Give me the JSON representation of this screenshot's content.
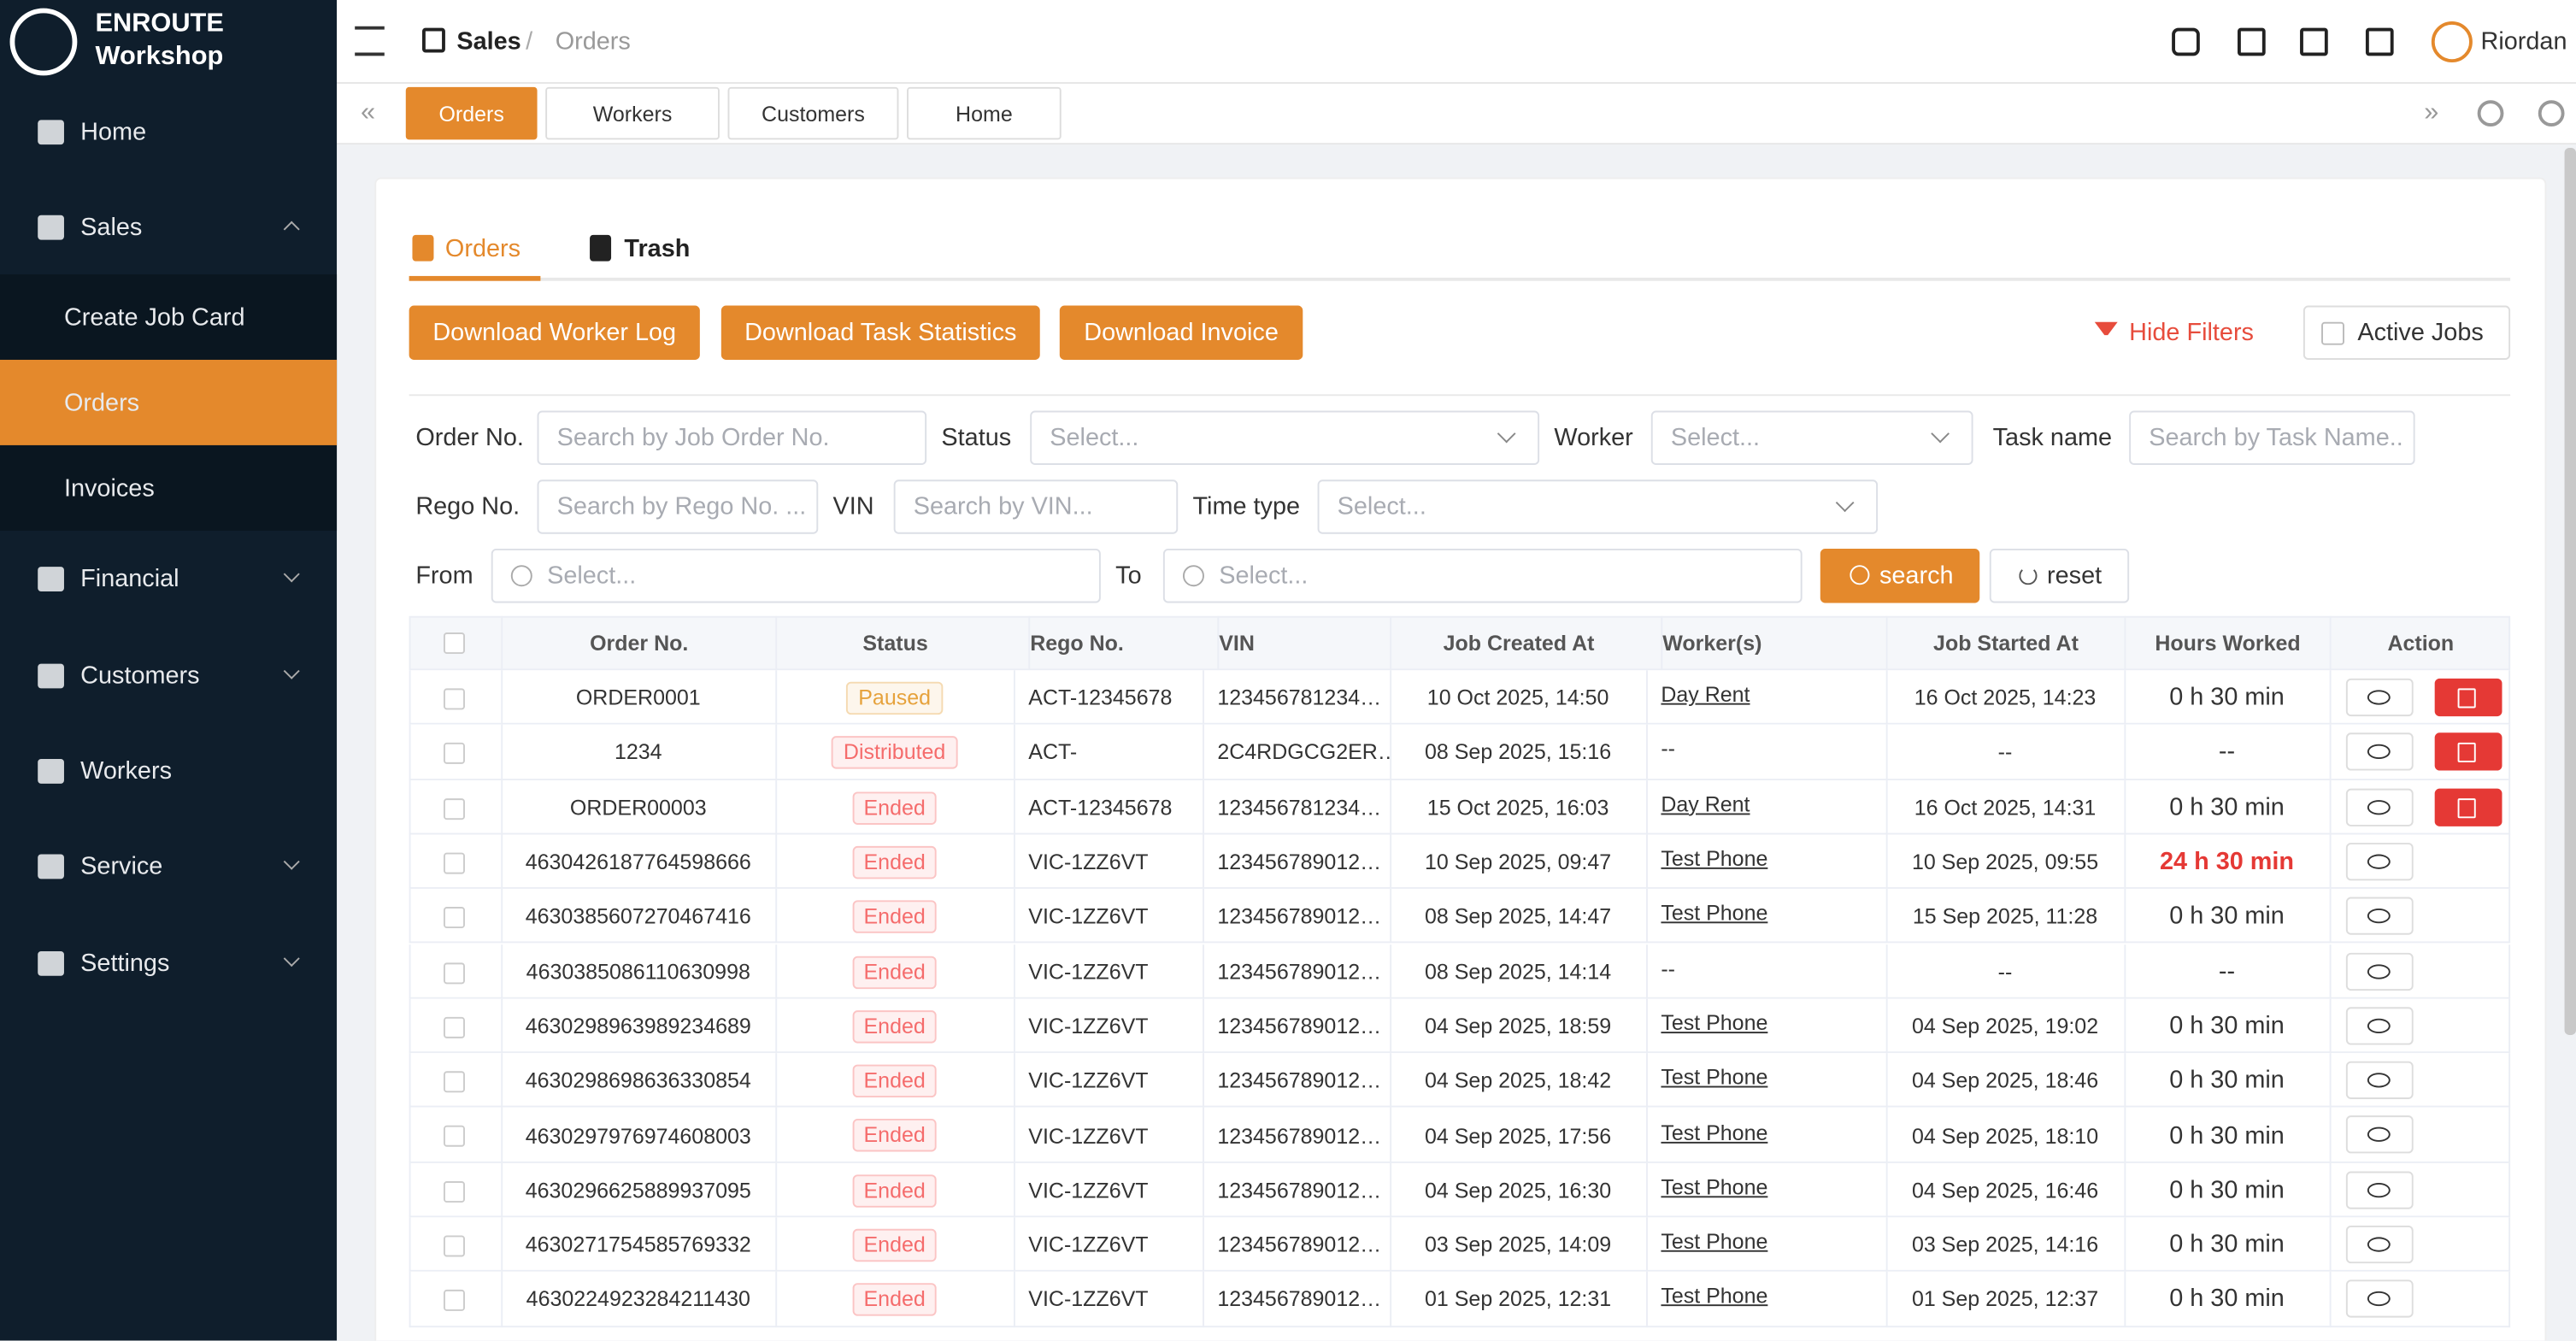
{
  "sidebar": {
    "brand": {
      "line1": "ENROUTE",
      "line2": "Workshop"
    },
    "menu": [
      {
        "label": "Home"
      },
      {
        "label": "Sales",
        "children": [
          "Create Job Card",
          "Orders",
          "Invoices"
        ]
      },
      {
        "label": "Financial"
      },
      {
        "label": "Customers"
      },
      {
        "label": "Workers"
      },
      {
        "label": "Service"
      },
      {
        "label": "Settings"
      }
    ]
  },
  "header": {
    "breadcrumb": [
      "Sales",
      "Orders"
    ],
    "user": "Riordan"
  },
  "tabs_bar": [
    "Orders",
    "Workers",
    "Customers",
    "Home"
  ],
  "page_tabs": [
    "Orders",
    "Trash"
  ],
  "toolbar": {
    "buttons": [
      "Download Worker Log",
      "Download Task Statistics",
      "Download Invoice"
    ],
    "hide_filters": "Hide Filters",
    "active_jobs": "Active Jobs"
  },
  "filters": [
    {
      "label": "Order No.",
      "placeholder": "Search by Job Order No."
    },
    {
      "label": "Status",
      "placeholder": "Select..."
    },
    {
      "label": "Worker",
      "placeholder": "Select..."
    },
    {
      "label": "Task name",
      "placeholder": "Search by Task Name.."
    },
    {
      "label": "Rego No.",
      "placeholder": "Search by Rego No. ..."
    },
    {
      "label": "VIN",
      "placeholder": "Search by VIN..."
    },
    {
      "label": "Time type",
      "placeholder": "Select..."
    },
    {
      "label": "From",
      "placeholder": "Select..."
    },
    {
      "label": "To",
      "placeholder": "Select..."
    }
  ],
  "filter_actions": [
    "search",
    "reset"
  ],
  "table": {
    "columns": [
      "Order No.",
      "Status",
      "Rego No.",
      "VIN",
      "Job Created At",
      "Worker(s)",
      "Job Started At",
      "Hours Worked",
      "Action"
    ],
    "rows": [
      [
        "ORDER0001",
        "Paused",
        "ACT-12345678",
        "123456781234…",
        "10 Oct 2025, 14:50",
        "Day Rent",
        "16 Oct 2025, 14:23",
        "0 h 30 min"
      ],
      [
        "1234",
        "Distributed",
        "ACT-",
        "2C4RDGCG2ER…",
        "08 Sep 2025, 15:16",
        "--",
        "--",
        "--"
      ],
      [
        "ORDER00003",
        "Ended",
        "ACT-12345678",
        "123456781234…",
        "15 Oct 2025, 16:03",
        "Day Rent",
        "16 Oct 2025, 14:31",
        "0 h 30 min"
      ],
      [
        "4630426187764598666",
        "Ended",
        "VIC-1ZZ6VT",
        "123456789012…",
        "10 Sep 2025, 09:47",
        "Test Phone",
        "10 Sep 2025, 09:55",
        "24 h 30 min"
      ],
      [
        "4630385607270467416",
        "Ended",
        "VIC-1ZZ6VT",
        "123456789012…",
        "08 Sep 2025, 14:47",
        "Test Phone",
        "15 Sep 2025, 11:28",
        "0 h 30 min"
      ],
      [
        "4630385086110630998",
        "Ended",
        "VIC-1ZZ6VT",
        "123456789012…",
        "08 Sep 2025, 14:14",
        "--",
        "--",
        "--"
      ],
      [
        "4630298963989234689",
        "Ended",
        "VIC-1ZZ6VT",
        "123456789012…",
        "04 Sep 2025, 18:59",
        "Test Phone",
        "04 Sep 2025, 19:02",
        "0 h 30 min"
      ],
      [
        "4630298698636330854",
        "Ended",
        "VIC-1ZZ6VT",
        "123456789012…",
        "04 Sep 2025, 18:42",
        "Test Phone",
        "04 Sep 2025, 18:46",
        "0 h 30 min"
      ],
      [
        "4630297976974608003",
        "Ended",
        "VIC-1ZZ6VT",
        "123456789012…",
        "04 Sep 2025, 17:56",
        "Test Phone",
        "04 Sep 2025, 18:10",
        "0 h 30 min"
      ],
      [
        "4630296625889937095",
        "Ended",
        "VIC-1ZZ6VT",
        "123456789012…",
        "04 Sep 2025, 16:30",
        "Test Phone",
        "04 Sep 2025, 16:46",
        "0 h 30 min"
      ],
      [
        "4630271754585769332",
        "Ended",
        "VIC-1ZZ6VT",
        "123456789012…",
        "03 Sep 2025, 14:09",
        "Test Phone",
        "03 Sep 2025, 14:16",
        "0 h 30 min"
      ],
      [
        "4630224923284211430",
        "Ended",
        "VIC-1ZZ6VT",
        "123456789012…",
        "01 Sep 2025, 12:31",
        "Test Phone",
        "01 Sep 2025, 12:37",
        "0 h 30 min"
      ]
    ]
  }
}
